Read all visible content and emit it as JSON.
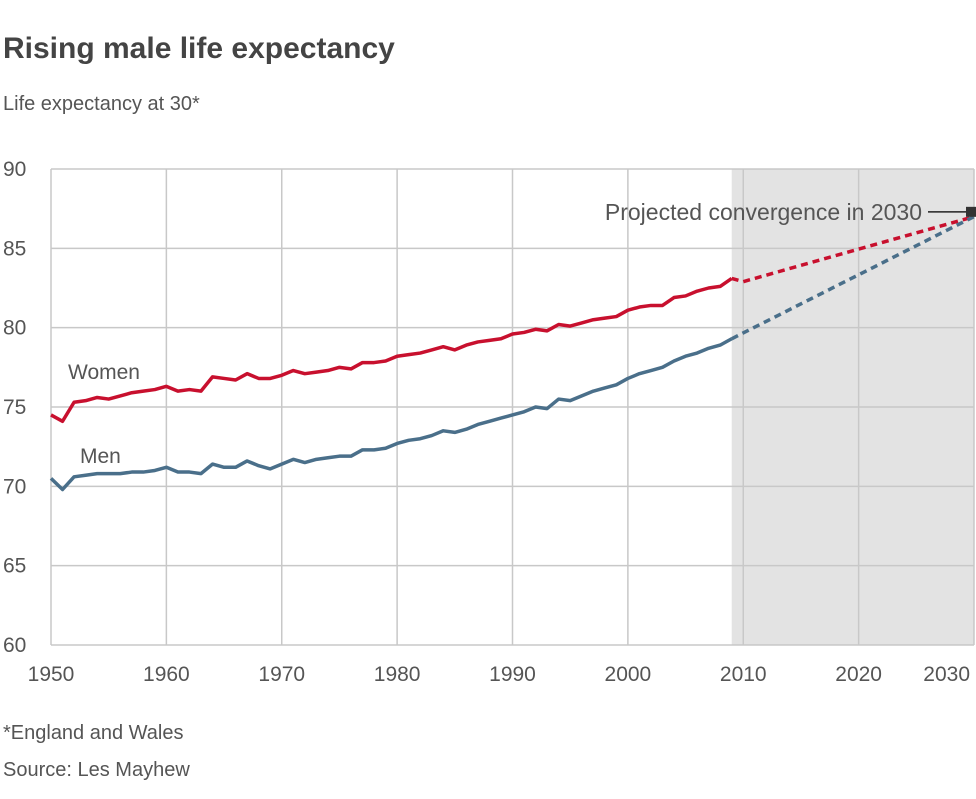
{
  "title": "Rising male life expectancy",
  "subtitle": "Life expectancy at 30*",
  "footnote": "*England and Wales",
  "source": "Source: Les Mayhew",
  "chart_data": {
    "type": "line",
    "title": "Rising male life expectancy",
    "subtitle": "Life expectancy at 30*",
    "xlim": [
      1950,
      2030
    ],
    "ylim": [
      60,
      90
    ],
    "xticks": [
      1950,
      1960,
      1970,
      1980,
      1990,
      2000,
      2010,
      2020,
      2030
    ],
    "yticks": [
      60,
      65,
      70,
      75,
      80,
      85,
      90
    ],
    "grid": true,
    "projection_shading_start": 2009,
    "colors": {
      "Women": "#c8102e",
      "Men": "#4a6f8a",
      "shade": "#e3e3e3",
      "grid": "#c8c8c8"
    },
    "x": [
      1950,
      1951,
      1952,
      1953,
      1954,
      1955,
      1956,
      1957,
      1958,
      1959,
      1960,
      1961,
      1962,
      1963,
      1964,
      1965,
      1966,
      1967,
      1968,
      1969,
      1970,
      1971,
      1972,
      1973,
      1974,
      1975,
      1976,
      1977,
      1978,
      1979,
      1980,
      1981,
      1982,
      1983,
      1984,
      1985,
      1986,
      1987,
      1988,
      1989,
      1990,
      1991,
      1992,
      1993,
      1994,
      1995,
      1996,
      1997,
      1998,
      1999,
      2000,
      2001,
      2002,
      2003,
      2004,
      2005,
      2006,
      2007,
      2008,
      2009
    ],
    "series": [
      {
        "name": "Women",
        "values": [
          74.5,
          74.1,
          75.3,
          75.4,
          75.6,
          75.5,
          75.7,
          75.9,
          76.0,
          76.1,
          76.3,
          76.0,
          76.1,
          76.0,
          76.9,
          76.8,
          76.7,
          77.1,
          76.8,
          76.8,
          77.0,
          77.3,
          77.1,
          77.2,
          77.3,
          77.5,
          77.4,
          77.8,
          77.8,
          77.9,
          78.2,
          78.3,
          78.4,
          78.6,
          78.8,
          78.6,
          78.9,
          79.1,
          79.2,
          79.3,
          79.6,
          79.7,
          79.9,
          79.8,
          80.2,
          80.1,
          80.3,
          80.5,
          80.6,
          80.7,
          81.1,
          81.3,
          81.4,
          81.4,
          81.9,
          82.0,
          82.3,
          82.5,
          82.6,
          83.1
        ],
        "projection": {
          "x": [
            2009,
            2010,
            2030
          ],
          "values": [
            83.1,
            82.9,
            87.0
          ]
        }
      },
      {
        "name": "Men",
        "values": [
          70.5,
          69.8,
          70.6,
          70.7,
          70.8,
          70.8,
          70.8,
          70.9,
          70.9,
          71.0,
          71.2,
          70.9,
          70.9,
          70.8,
          71.4,
          71.2,
          71.2,
          71.6,
          71.3,
          71.1,
          71.4,
          71.7,
          71.5,
          71.7,
          71.8,
          71.9,
          71.9,
          72.3,
          72.3,
          72.4,
          72.7,
          72.9,
          73.0,
          73.2,
          73.5,
          73.4,
          73.6,
          73.9,
          74.1,
          74.3,
          74.5,
          74.7,
          75.0,
          74.9,
          75.5,
          75.4,
          75.7,
          76.0,
          76.2,
          76.4,
          76.8,
          77.1,
          77.3,
          77.5,
          77.9,
          78.2,
          78.4,
          78.7,
          78.9,
          79.3
        ],
        "projection": {
          "x": [
            2009,
            2030
          ],
          "values": [
            79.3,
            87.0
          ]
        }
      }
    ],
    "annotation": {
      "text": "Projected convergence in 2030",
      "x": 2030,
      "y": 87.3
    }
  }
}
